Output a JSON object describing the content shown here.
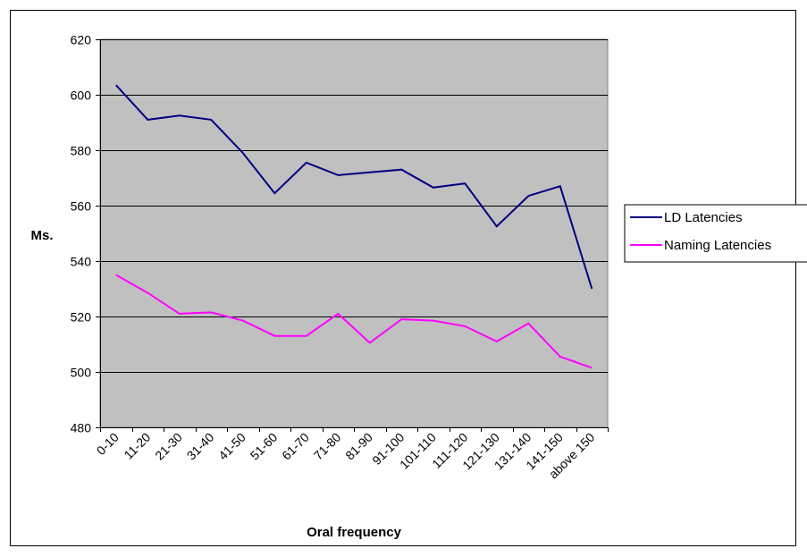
{
  "chart_data": {
    "type": "line",
    "title": "",
    "xlabel": "Oral frequency",
    "ylabel": "Ms.",
    "categories": [
      "0-10",
      "11-20",
      "21-30",
      "31-40",
      "41-50",
      "51-60",
      "61-70",
      "71-80",
      "81-90",
      "91-100",
      "101-110",
      "111-120",
      "121-130",
      "131-140",
      "141-150",
      "above 150"
    ],
    "ylim": [
      480,
      620
    ],
    "yticks": [
      480,
      500,
      520,
      540,
      560,
      580,
      600,
      620
    ],
    "grid": "horizontal",
    "plot_background": "#c0c0c0",
    "legend_position": "right",
    "series": [
      {
        "name": "LD Latencies",
        "color": "#000080",
        "values": [
          603.5,
          591,
          592.5,
          591,
          579,
          564.5,
          575.5,
          571,
          572,
          573,
          566.5,
          568,
          552.5,
          563.5,
          567,
          530
        ]
      },
      {
        "name": "Naming Latencies",
        "color": "#ff00ff",
        "values": [
          535,
          528.5,
          521,
          521.5,
          518.5,
          513,
          513,
          521,
          510.5,
          519,
          518.5,
          516.5,
          511,
          517.5,
          505.5,
          501.5
        ]
      }
    ]
  }
}
